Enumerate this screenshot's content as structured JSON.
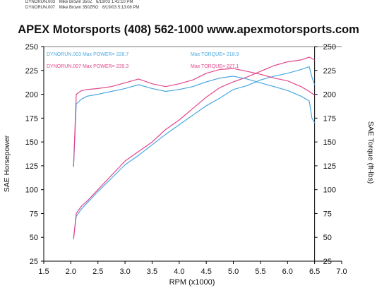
{
  "header_runs": [
    {
      "file": "DYNORUN.003",
      "detail": "Mike Brown 350Z",
      "stamp": "6/19/03 1:42:10 PM"
    },
    {
      "file": "DYNORUN.007",
      "detail": "Mike Brown 350ZRO",
      "stamp": "6/19/03 5:13:08 PM"
    }
  ],
  "title": "APEX Motorsports (408) 562-1000 www.apexmotorsports.com",
  "colors": {
    "run_003": "#4aa8e0",
    "run_007": "#e0468c",
    "axis": "#000000"
  },
  "chart_data": {
    "type": "line",
    "xlabel": "RPM (x1000)",
    "ylabel_left": "SAE Horsepower",
    "ylabel_right": "SAE Torque (ft-lbs)",
    "xlim": [
      1.5,
      7.0
    ],
    "ylim": [
      25,
      250
    ],
    "x_ticks": [
      "1.5",
      "2.0",
      "2.5",
      "3.0",
      "3.5",
      "4.0",
      "4.5",
      "5.0",
      "5.5",
      "6.0",
      "6.5",
      "7.0"
    ],
    "y_ticks": [
      "25",
      "50",
      "75",
      "100",
      "125",
      "150",
      "175",
      "200",
      "225",
      "250"
    ],
    "grid": false,
    "legend": [
      {
        "text": "DYNORUN.003  Max POWER= 228.7",
        "series": "run_003"
      },
      {
        "text": "DYNORUN.007  Max POWER= 239.3",
        "series": "run_007"
      },
      {
        "text": "Max TORQUE= 218.9",
        "series": "run_003"
      },
      {
        "text": "Max TORQUE= 227.1",
        "series": "run_007"
      }
    ],
    "series": [
      {
        "name": "DYNORUN.003",
        "measure": "power",
        "color_key": "run_003",
        "x": [
          2.05,
          2.1,
          2.2,
          2.3,
          2.4,
          2.5,
          2.75,
          3.0,
          3.25,
          3.5,
          3.75,
          4.0,
          4.25,
          4.5,
          4.75,
          5.0,
          5.25,
          5.5,
          5.75,
          6.0,
          6.25,
          6.4,
          6.45,
          6.5
        ],
        "y": [
          50,
          72,
          80,
          86,
          92,
          98,
          112,
          126,
          136,
          147,
          158,
          168,
          178,
          188,
          196,
          205,
          209,
          215,
          219,
          222,
          226,
          229,
          218,
          210
        ]
      },
      {
        "name": "DYNORUN.007",
        "measure": "power",
        "color_key": "run_007",
        "x": [
          2.05,
          2.1,
          2.2,
          2.3,
          2.4,
          2.5,
          2.75,
          3.0,
          3.25,
          3.5,
          3.75,
          4.0,
          4.25,
          4.5,
          4.75,
          5.0,
          5.25,
          5.5,
          5.75,
          6.0,
          6.25,
          6.4,
          6.5
        ],
        "y": [
          48,
          75,
          83,
          88,
          94,
          100,
          115,
          130,
          140,
          150,
          163,
          173,
          185,
          197,
          207,
          213,
          218,
          224,
          230,
          234,
          236,
          239,
          236
        ]
      },
      {
        "name": "DYNORUN.003",
        "measure": "torque",
        "color_key": "run_003",
        "x": [
          2.05,
          2.1,
          2.2,
          2.3,
          2.5,
          2.75,
          3.0,
          3.25,
          3.5,
          3.75,
          4.0,
          4.25,
          4.5,
          4.75,
          5.0,
          5.25,
          5.5,
          5.75,
          6.0,
          6.25,
          6.4,
          6.45,
          6.5
        ],
        "y": [
          124,
          190,
          195,
          198,
          200,
          203,
          206,
          210,
          206,
          203,
          205,
          208,
          213,
          217,
          219,
          216,
          212,
          208,
          204,
          198,
          193,
          175,
          170
        ]
      },
      {
        "name": "DYNORUN.007",
        "measure": "torque",
        "color_key": "run_007",
        "x": [
          2.05,
          2.1,
          2.2,
          2.3,
          2.5,
          2.75,
          3.0,
          3.25,
          3.5,
          3.75,
          4.0,
          4.25,
          4.5,
          4.75,
          5.0,
          5.25,
          5.5,
          5.75,
          6.0,
          6.25,
          6.4,
          6.5
        ],
        "y": [
          124,
          200,
          204,
          205,
          206,
          208,
          212,
          216,
          211,
          208,
          211,
          215,
          222,
          226,
          227,
          224,
          221,
          217,
          214,
          208,
          203,
          199
        ]
      }
    ]
  }
}
